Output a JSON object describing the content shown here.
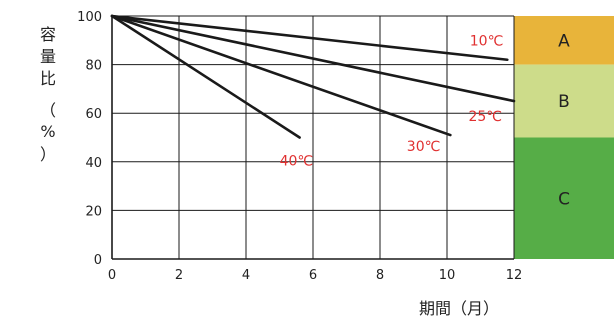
{
  "chart_data": {
    "type": "line",
    "ylabel_chars": [
      "容",
      "量",
      "比",
      "（",
      "%",
      "）"
    ],
    "xlabel": "期間（月）",
    "xlim": [
      0,
      12
    ],
    "ylim": [
      0,
      100
    ],
    "x_ticks": [
      "0",
      "2",
      "4",
      "6",
      "8",
      "10",
      "12"
    ],
    "y_ticks": [
      "0",
      "20",
      "40",
      "60",
      "80",
      "100"
    ],
    "grid": true,
    "series": [
      {
        "name": "10℃",
        "x": [
          0,
          11.8
        ],
        "y": [
          100,
          82
        ]
      },
      {
        "name": "25℃",
        "x": [
          0,
          12
        ],
        "y": [
          100,
          65
        ]
      },
      {
        "name": "30℃",
        "x": [
          0,
          10.1
        ],
        "y": [
          100,
          51
        ]
      },
      {
        "name": "40℃",
        "x": [
          0,
          5.6
        ],
        "y": [
          100,
          50
        ]
      }
    ],
    "bands": [
      {
        "label": "A",
        "y_from": 80,
        "y_to": 100,
        "color": "#e8b43a"
      },
      {
        "label": "B",
        "y_from": 50,
        "y_to": 80,
        "color": "#cddc8a"
      },
      {
        "label": "C",
        "y_from": 0,
        "y_to": 50,
        "color": "#56ad47"
      }
    ],
    "colors": {
      "line": "#1a1a1a",
      "label": "#e03030",
      "grid": "#1a1a1a"
    }
  }
}
